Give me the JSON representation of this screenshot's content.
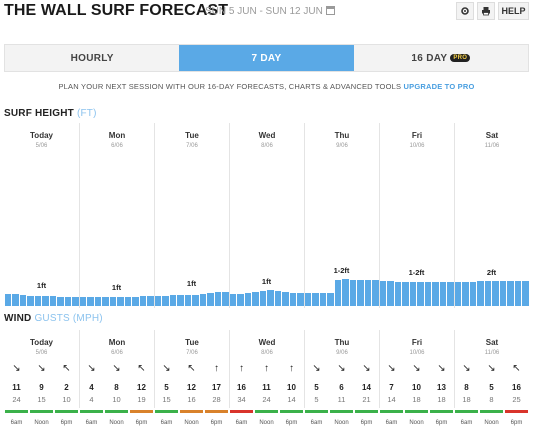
{
  "header": {
    "title": "THE WALL SURF FORECAST",
    "date_range": "SUN 5 JUN - SUN 12 JUN",
    "settings_icon": "gear-icon",
    "print_icon": "print-icon",
    "help_label": "HELP"
  },
  "tabs": [
    {
      "label": "HOURLY",
      "active": false
    },
    {
      "label": "7 DAY",
      "active": true
    },
    {
      "label": "16 DAY",
      "active": false,
      "badge": "PRO"
    }
  ],
  "promo": {
    "text": "PLAN YOUR NEXT SESSION WITH OUR 16-DAY FORECASTS, CHARTS & ADVANCED TOOLS",
    "link": "UPGRADE TO PRO"
  },
  "surf": {
    "title": "SURF HEIGHT",
    "unit": "(FT)",
    "days": [
      {
        "name": "Today",
        "date": "5/06",
        "label": "1ft"
      },
      {
        "name": "Mon",
        "date": "6/06",
        "label": "1ft"
      },
      {
        "name": "Tue",
        "date": "7/06",
        "label": "1ft"
      },
      {
        "name": "Wed",
        "date": "8/06",
        "label": "1ft"
      },
      {
        "name": "Thu",
        "date": "9/06",
        "label": "1-2ft"
      },
      {
        "name": "Fri",
        "date": "10/06",
        "label": "1-2ft"
      },
      {
        "name": "Sat",
        "date": "11/06",
        "label": "2ft"
      }
    ],
    "bar_levels": [
      0.48,
      0.47,
      0.42,
      0.38,
      0.37,
      0.37,
      0.37,
      0.36,
      0.36,
      0.35,
      0.34,
      0.33,
      0.33,
      0.33,
      0.33,
      0.34,
      0.35,
      0.36,
      0.37,
      0.38,
      0.38,
      0.4,
      0.42,
      0.42,
      0.42,
      0.42,
      0.45,
      0.5,
      0.55,
      0.55,
      0.48,
      0.48,
      0.5,
      0.55,
      0.58,
      0.6,
      0.58,
      0.55,
      0.5,
      0.5,
      0.5,
      0.5,
      0.5,
      0.5,
      1.0,
      1.05,
      1.0,
      1.0,
      1.0,
      1.0,
      0.95,
      0.95,
      0.92,
      0.92,
      0.92,
      0.92,
      0.92,
      0.92,
      0.92,
      0.92,
      0.92,
      0.92,
      0.92,
      0.95,
      0.95,
      0.95,
      0.95,
      0.95,
      0.95,
      0.95
    ]
  },
  "wind": {
    "title": "WIND",
    "subtitle": "GUSTS",
    "unit": "(MPH)",
    "days": [
      {
        "name": "Today",
        "date": "5/06"
      },
      {
        "name": "Mon",
        "date": "6/06"
      },
      {
        "name": "Tue",
        "date": "7/06"
      },
      {
        "name": "Wed",
        "date": "8/06"
      },
      {
        "name": "Thu",
        "date": "9/06"
      },
      {
        "name": "Fri",
        "date": "10/06"
      },
      {
        "name": "Sat",
        "date": "11/06"
      }
    ],
    "times": [
      "6am",
      "Noon",
      "6pm"
    ],
    "cells": [
      {
        "arrow": "↘",
        "speed": "11",
        "gust": "24",
        "color": "#3bb14a"
      },
      {
        "arrow": "↘",
        "speed": "9",
        "gust": "15",
        "color": "#3bb14a"
      },
      {
        "arrow": "↖",
        "speed": "2",
        "gust": "10",
        "color": "#3bb14a"
      },
      {
        "arrow": "↘",
        "speed": "4",
        "gust": "4",
        "color": "#3bb14a"
      },
      {
        "arrow": "↘",
        "speed": "8",
        "gust": "10",
        "color": "#3bb14a"
      },
      {
        "arrow": "↖",
        "speed": "12",
        "gust": "19",
        "color": "#d9822b"
      },
      {
        "arrow": "↘",
        "speed": "5",
        "gust": "15",
        "color": "#3bb14a"
      },
      {
        "arrow": "↖",
        "speed": "12",
        "gust": "16",
        "color": "#d9822b"
      },
      {
        "arrow": "↑",
        "speed": "17",
        "gust": "28",
        "color": "#d9822b"
      },
      {
        "arrow": "↑",
        "speed": "16",
        "gust": "34",
        "color": "#d9342b"
      },
      {
        "arrow": "↑",
        "speed": "11",
        "gust": "24",
        "color": "#3bb14a"
      },
      {
        "arrow": "↑",
        "speed": "10",
        "gust": "14",
        "color": "#3bb14a"
      },
      {
        "arrow": "↘",
        "speed": "5",
        "gust": "5",
        "color": "#3bb14a"
      },
      {
        "arrow": "↘",
        "speed": "6",
        "gust": "11",
        "color": "#3bb14a"
      },
      {
        "arrow": "↘",
        "speed": "14",
        "gust": "21",
        "color": "#3bb14a"
      },
      {
        "arrow": "↘",
        "speed": "7",
        "gust": "14",
        "color": "#3bb14a"
      },
      {
        "arrow": "↘",
        "speed": "10",
        "gust": "18",
        "color": "#3bb14a"
      },
      {
        "arrow": "↘",
        "speed": "13",
        "gust": "18",
        "color": "#3bb14a"
      },
      {
        "arrow": "↘",
        "speed": "8",
        "gust": "18",
        "color": "#3bb14a"
      },
      {
        "arrow": "↘",
        "speed": "5",
        "gust": "8",
        "color": "#3bb14a"
      },
      {
        "arrow": "↖",
        "speed": "16",
        "gust": "25",
        "color": "#d9342b"
      }
    ]
  }
}
